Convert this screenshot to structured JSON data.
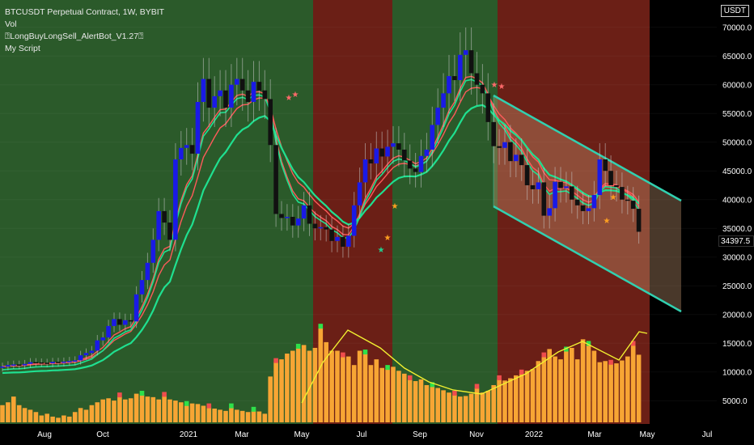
{
  "legend": {
    "line1": "BTCUSDT Perpetual Contract, 1W, BYBIT",
    "line2": "Vol",
    "line3": "⍰LongBuyLongSell_AlertBot_V1.27⍰",
    "line4": "My Script"
  },
  "currency": "USDT",
  "last_price": "34397.5",
  "colors": {
    "bull_zone": "#2b5a2a",
    "bear_zone": "#6b1f16",
    "right_bg": "#000000",
    "candle_up": "#1a1ae6",
    "candle_down": "#111111",
    "ema_red": "#ff5a5a",
    "ema_green": "#1fe090",
    "channel": "#31d0b0",
    "volume": "#f7a534",
    "volume_up": "#2ee04a",
    "volume_down": "#ef4d4d",
    "volume_line": "#f2f030",
    "axis_text": "#ffffff"
  },
  "chart_data": {
    "type": "candlestick",
    "timeframe": "1W",
    "x_labels": [
      "Aug",
      "Oct",
      "2021",
      "Mar",
      "May",
      "Jul",
      "Sep",
      "Nov",
      "2022",
      "Mar",
      "May",
      "Jul"
    ],
    "y_ticks": [
      5000,
      10000,
      15000,
      20000,
      25000,
      30000,
      35000,
      40000,
      45000,
      50000,
      55000,
      60000,
      65000,
      70000
    ],
    "y_tick_labels": [
      "5000.0",
      "10000.0",
      "15000.0",
      "20000.0",
      "25000.0",
      "30000.0",
      "35000.0",
      "40000.0",
      "45000.0",
      "50000.0",
      "55000.0",
      "60000.0",
      "65000.0",
      "70000.0"
    ],
    "ylim": [
      3000,
      74000
    ],
    "last_price": 34397.5,
    "close": [
      10950,
      11200,
      11300,
      11150,
      11400,
      11700,
      11650,
      11600,
      11500,
      11750,
      11650,
      11800,
      11900,
      12000,
      12900,
      13300,
      13700,
      15500,
      16000,
      18000,
      19200,
      18200,
      19000,
      18800,
      23500,
      26000,
      29000,
      33000,
      38000,
      36000,
      33000,
      47000,
      49000,
      49500,
      48000,
      57000,
      61000,
      56000,
      58000,
      59000,
      56000,
      60000,
      61000,
      59000,
      57000,
      60500,
      59000,
      57500,
      49500,
      37500,
      36800,
      37000,
      35500,
      36700,
      39000,
      35800,
      35000,
      35200,
      34800,
      32800,
      33500,
      31800,
      33700,
      39000,
      43000,
      47000,
      46300,
      48900,
      47500,
      49200,
      49800,
      48700,
      46800,
      45400,
      44800,
      47600,
      48700,
      53000,
      56000,
      58500,
      61500,
      60800,
      65200,
      66000,
      62000,
      60000,
      58500,
      53500,
      49300,
      49000,
      50000,
      46700,
      47800,
      46000,
      42500,
      41800,
      43000,
      37200,
      38500,
      43100,
      42000,
      42300,
      40000,
      39000,
      38000,
      38500,
      40800,
      47000,
      45000,
      42500,
      42200,
      40000,
      39800,
      38400,
      34400
    ],
    "volume": [
      8000,
      8500,
      9500,
      8000,
      7500,
      7200,
      6800,
      6200,
      6500,
      6000,
      5800,
      6200,
      6000,
      6800,
      7500,
      7200,
      8000,
      8500,
      9000,
      9200,
      8800,
      9500,
      9000,
      9200,
      10000,
      9800,
      9500,
      9400,
      9000,
      9600,
      9000,
      8800,
      8500,
      8000,
      8300,
      8200,
      7900,
      7600,
      7400,
      7200,
      7000,
      7600,
      7200,
      7000,
      6800,
      7000,
      6900,
      6500,
      13000,
      15500,
      16000,
      17000,
      17500,
      18000,
      18500,
      17500,
      18000,
      21500,
      19000,
      17500,
      17500,
      16500,
      16500,
      15000,
      17500,
      17000,
      15000,
      16000,
      14500,
      14300,
      14700,
      14000,
      13500,
      12500,
      12200,
      12500,
      11500,
      11300,
      11000,
      10600,
      10200,
      9800,
      9500,
      9600,
      10000,
      11000,
      10200,
      10500,
      11500,
      12500,
      12300,
      12700,
      13200,
      13500,
      14000,
      14300,
      15700,
      16500,
      17800,
      16500,
      16000,
      17500,
      18000,
      16000,
      19500,
      18500,
      17500,
      15500,
      15700,
      15200,
      15300,
      15800,
      16500,
      18500,
      16800
    ],
    "channel_upper": [
      [
        50000,
        60000
      ],
      [
        180000,
        41500
      ]
    ],
    "channel_lower": [
      [
        50000,
        40000
      ],
      [
        180000,
        22000
      ]
    ]
  }
}
